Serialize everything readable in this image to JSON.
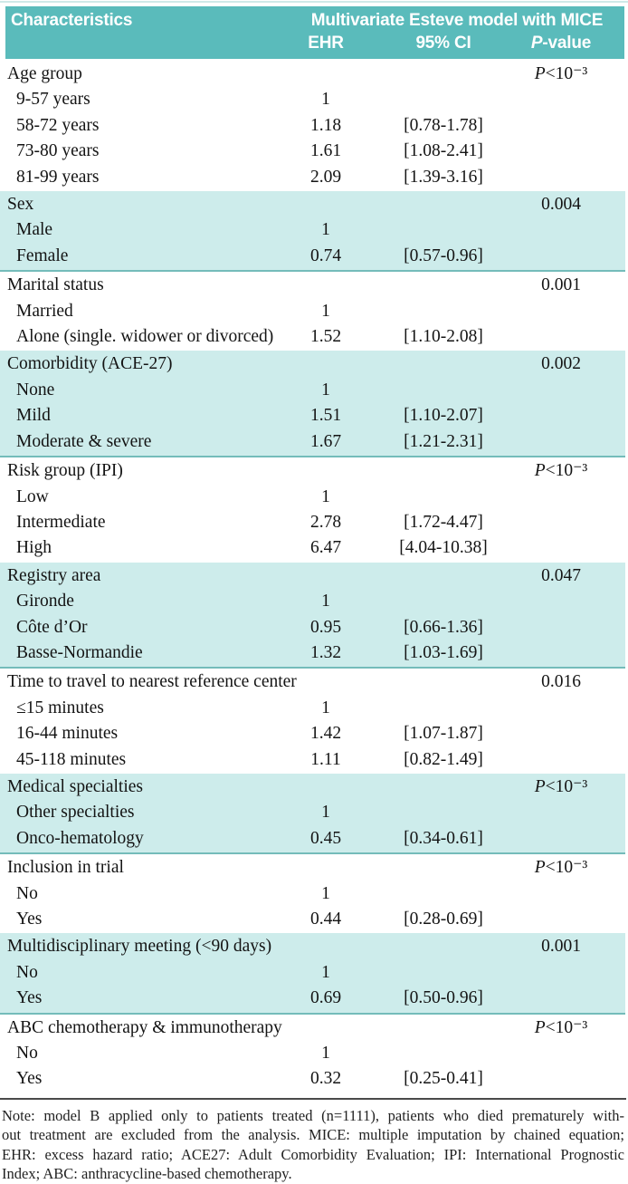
{
  "colors": {
    "header_teal": "#5abbbb",
    "band_teal": "#cdeceb",
    "band_border_teal": "#74bcba",
    "rule_dark": "#4a4a4a"
  },
  "table": {
    "header": {
      "characteristics": "Characteristics",
      "model_title": "Multivariate Esteve model with MICE",
      "col_ehr": "EHR",
      "col_ci": "95% CI",
      "col_p_italic": "P",
      "col_p_rest": "-value"
    },
    "sections": [
      {
        "label": "Age group",
        "p_value": "P<10⁻³",
        "shaded": false,
        "rows": [
          {
            "label": "9-57 years",
            "ehr": "1",
            "ci": ""
          },
          {
            "label": "58-72 years",
            "ehr": "1.18",
            "ci": "[0.78-1.78]"
          },
          {
            "label": "73-80 years",
            "ehr": "1.61",
            "ci": "[1.08-2.41]"
          },
          {
            "label": "81-99 years",
            "ehr": "2.09",
            "ci": "[1.39-3.16]"
          }
        ]
      },
      {
        "label": "Sex",
        "p_value": "0.004",
        "shaded": true,
        "rows": [
          {
            "label": "Male",
            "ehr": "1",
            "ci": ""
          },
          {
            "label": "Female",
            "ehr": "0.74",
            "ci": "[0.57-0.96]"
          }
        ]
      },
      {
        "label": "Marital status",
        "p_value": "0.001",
        "shaded": false,
        "rows": [
          {
            "label": "Married",
            "ehr": "1",
            "ci": ""
          },
          {
            "label": "Alone (single. widower or divorced)",
            "ehr": "1.52",
            "ci": "[1.10-2.08]"
          }
        ]
      },
      {
        "label": "Comorbidity (ACE-27)",
        "p_value": "0.002",
        "shaded": true,
        "rows": [
          {
            "label": "None",
            "ehr": "1",
            "ci": ""
          },
          {
            "label": "Mild",
            "ehr": "1.51",
            "ci": "[1.10-2.07]"
          },
          {
            "label": "Moderate & severe",
            "ehr": "1.67",
            "ci": "[1.21-2.31]"
          }
        ]
      },
      {
        "label": "Risk group  (IPI)",
        "p_value": "P<10⁻³",
        "shaded": false,
        "rows": [
          {
            "label": "Low",
            "ehr": "1",
            "ci": ""
          },
          {
            "label": "Intermediate",
            "ehr": "2.78",
            "ci": "[1.72-4.47]"
          },
          {
            "label": "High",
            "ehr": "6.47",
            "ci": "[4.04-10.38]"
          }
        ]
      },
      {
        "label": "Registry area",
        "p_value": "0.047",
        "shaded": true,
        "rows": [
          {
            "label": "Gironde",
            "ehr": "1",
            "ci": ""
          },
          {
            "label": "Côte d’Or",
            "ehr": "0.95",
            "ci": "[0.66-1.36]"
          },
          {
            "label": "Basse-Normandie",
            "ehr": "1.32",
            "ci": "[1.03-1.69]"
          }
        ]
      },
      {
        "label": "Time to travel to nearest reference center",
        "p_value": "0.016",
        "shaded": false,
        "rows": [
          {
            "label": "≤15 minutes",
            "ehr": "1",
            "ci": ""
          },
          {
            "label": "16-44 minutes",
            "ehr": "1.42",
            "ci": "[1.07-1.87]"
          },
          {
            "label": "45-118 minutes",
            "ehr": "1.11",
            "ci": "[0.82-1.49]"
          }
        ]
      },
      {
        "label": "Medical specialties",
        "p_value": "P<10⁻³",
        "shaded": true,
        "rows": [
          {
            "label": "Other specialties",
            "ehr": "1",
            "ci": ""
          },
          {
            "label": "Onco-hematology",
            "ehr": "0.45",
            "ci": "[0.34-0.61]"
          }
        ]
      },
      {
        "label": "Inclusion in trial",
        "p_value": "P<10⁻³",
        "shaded": false,
        "rows": [
          {
            "label": "No",
            "ehr": "1",
            "ci": ""
          },
          {
            "label": "Yes",
            "ehr": "0.44",
            "ci": "[0.28-0.69]"
          }
        ]
      },
      {
        "label": "Multidisciplinary meeting (<90 days)",
        "p_value": "0.001",
        "shaded": true,
        "rows": [
          {
            "label": "No",
            "ehr": "1",
            "ci": ""
          },
          {
            "label": "Yes",
            "ehr": "0.69",
            "ci": "[0.50-0.96]"
          }
        ]
      },
      {
        "label": "ABC chemotherapy & immunotherapy",
        "p_value": "P<10⁻³",
        "shaded": false,
        "rows": [
          {
            "label": "No",
            "ehr": "1",
            "ci": ""
          },
          {
            "label": "Yes",
            "ehr": "0.32",
            "ci": "[0.25-0.41]"
          }
        ]
      }
    ]
  },
  "note_lines": [
    "Note: model B applied only to patients treated (n=1111), patients who died prematurely with-",
    "out treatment are excluded from the analysis. MICE: multiple imputation by chained equation;",
    "EHR: excess hazard ratio; ACE27: Adult Comorbidity Evaluation; IPI: International Prognostic",
    "Index; ABC: anthracycline-based chemotherapy."
  ]
}
